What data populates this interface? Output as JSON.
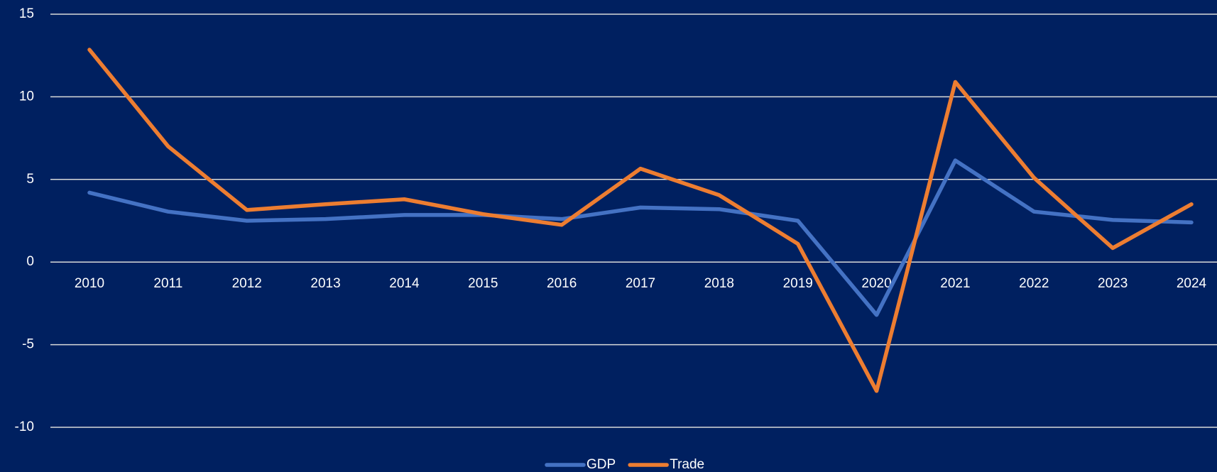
{
  "chart_data": {
    "type": "line",
    "categories": [
      "2010",
      "2011",
      "2012",
      "2013",
      "2014",
      "2015",
      "2016",
      "2017",
      "2018",
      "2019",
      "2020",
      "2021",
      "2022",
      "2023",
      "2024"
    ],
    "series": [
      {
        "name": "GDP",
        "color": "#4472c4",
        "values": [
          4.2,
          3.05,
          2.5,
          2.6,
          2.85,
          2.85,
          2.6,
          3.3,
          3.2,
          2.5,
          -3.2,
          6.15,
          3.05,
          2.55,
          2.4
        ]
      },
      {
        "name": "Trade",
        "color": "#ed7d31",
        "values": [
          12.85,
          7.0,
          3.15,
          3.5,
          3.8,
          2.9,
          2.25,
          5.65,
          4.05,
          1.1,
          -7.8,
          10.9,
          5.1,
          0.85,
          3.5
        ]
      }
    ],
    "ylim": [
      -10,
      15
    ],
    "yticks": [
      -10,
      -5,
      0,
      5,
      10,
      15
    ],
    "grid": true,
    "legend": "bottom"
  }
}
